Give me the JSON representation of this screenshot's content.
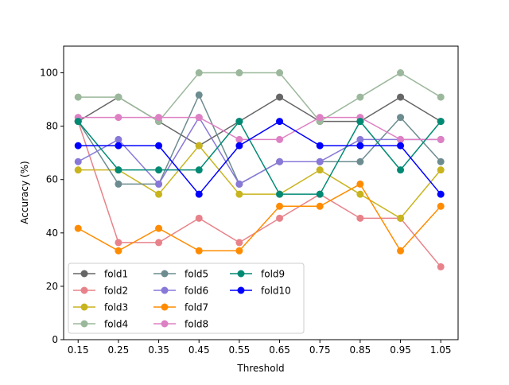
{
  "chart_data": {
    "type": "line",
    "title": "",
    "xlabel": "Threshold",
    "ylabel": "Accuracy (%)",
    "x": [
      0.15,
      0.25,
      0.35,
      0.45,
      0.55,
      0.65,
      0.75,
      0.85,
      0.95,
      1.05
    ],
    "x_tick_labels": [
      "0.15",
      "0.25",
      "0.35",
      "0.45",
      "0.55",
      "0.65",
      "0.75",
      "0.85",
      "0.95",
      "1.05"
    ],
    "y_ticks": [
      0,
      20,
      40,
      60,
      80,
      100
    ],
    "y_tick_labels": [
      "0",
      "20",
      "40",
      "60",
      "80",
      "100"
    ],
    "xlim": [
      0.114,
      1.093
    ],
    "ylim": [
      0,
      110
    ],
    "grid": false,
    "legend_placement": "lower-left",
    "series": [
      {
        "name": "fold1",
        "color": "#666666",
        "values": [
          81.8,
          90.9,
          81.8,
          72.7,
          81.8,
          90.9,
          81.8,
          81.8,
          90.9,
          81.8
        ]
      },
      {
        "name": "fold2",
        "color": "#e8828a",
        "values": [
          81.8,
          36.4,
          36.4,
          45.5,
          36.4,
          45.5,
          54.5,
          45.5,
          45.5,
          27.3
        ]
      },
      {
        "name": "fold3",
        "color": "#c8b41e",
        "values": [
          63.6,
          63.6,
          54.5,
          72.7,
          54.5,
          54.5,
          63.6,
          54.5,
          45.5,
          63.6
        ]
      },
      {
        "name": "fold4",
        "color": "#9cb89c",
        "values": [
          90.9,
          90.9,
          81.8,
          100,
          100,
          100,
          81.8,
          90.9,
          100,
          90.9
        ]
      },
      {
        "name": "fold5",
        "color": "#6c8c90",
        "values": [
          81.8,
          58.3,
          58.3,
          91.7,
          58.3,
          66.7,
          66.7,
          66.7,
          83.3,
          66.7
        ]
      },
      {
        "name": "fold6",
        "color": "#8878d8",
        "values": [
          66.7,
          75,
          58.3,
          83.3,
          58.3,
          66.7,
          66.7,
          75,
          75,
          75
        ]
      },
      {
        "name": "fold7",
        "color": "#ff8c00",
        "values": [
          41.7,
          33.3,
          41.7,
          33.3,
          33.3,
          50,
          50,
          58.3,
          33.3,
          50
        ]
      },
      {
        "name": "fold8",
        "color": "#de80c4",
        "values": [
          83.3,
          83.3,
          83.3,
          83.3,
          75,
          75,
          83.3,
          83.3,
          75,
          75
        ]
      },
      {
        "name": "fold9",
        "color": "#008a74",
        "values": [
          81.8,
          63.6,
          63.6,
          63.6,
          81.8,
          54.5,
          54.5,
          81.8,
          63.6,
          81.8
        ]
      },
      {
        "name": "fold10",
        "color": "#0000ff",
        "values": [
          72.7,
          72.7,
          72.7,
          54.5,
          72.7,
          81.8,
          72.7,
          72.7,
          72.7,
          54.5
        ]
      }
    ]
  }
}
